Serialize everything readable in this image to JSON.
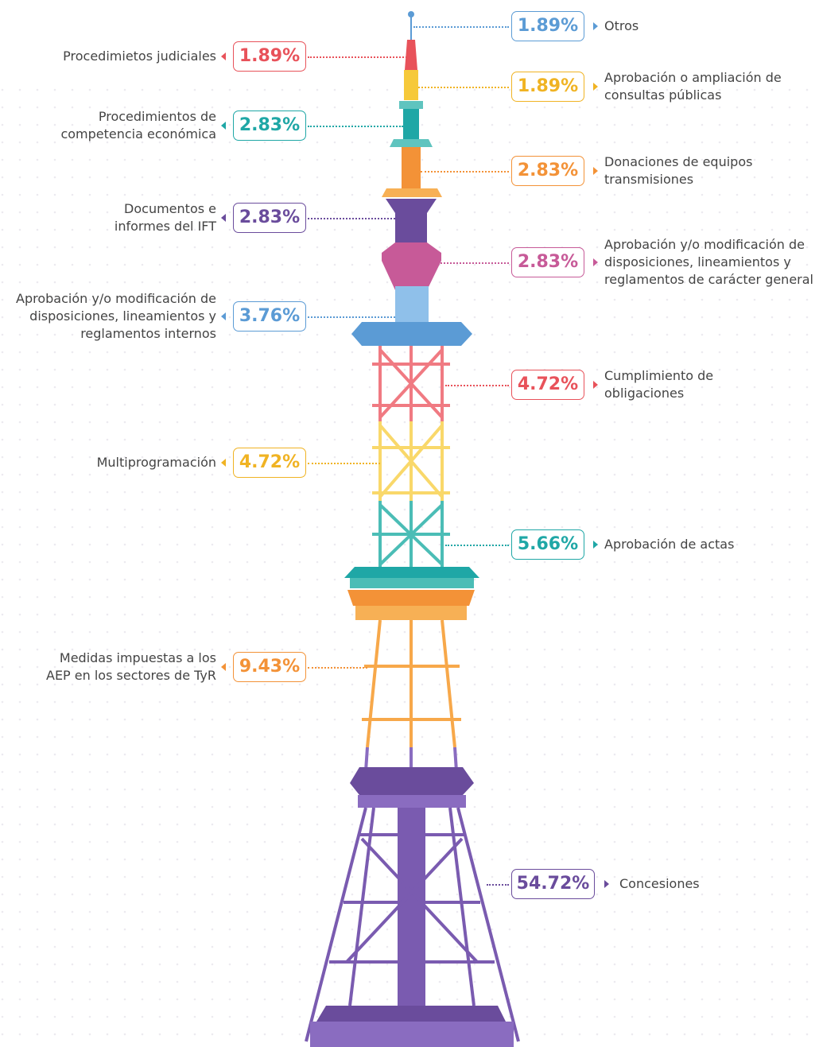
{
  "left_items": [
    {
      "label": "Procedimietos judiciales",
      "value": "1.89%",
      "color": "#e8525a"
    },
    {
      "label": "Procedimientos de competencia económica",
      "value": "2.83%",
      "color": "#1fa7a6"
    },
    {
      "label": "Documentos e informes del IFT",
      "value": "2.83%",
      "color": "#6a4c9c"
    },
    {
      "label": "Aprobación y/o modificación de disposiciones, lineamientos y reglamentos internos",
      "value": "3.76%",
      "color": "#5b9bd5"
    },
    {
      "label": "Multiprogramación",
      "value": "4.72%",
      "color": "#f0b323"
    },
    {
      "label": "Medidas impuestas a los AEP en los sectores de TyR",
      "value": "9.43%",
      "color": "#f39237"
    }
  ],
  "right_items": [
    {
      "label": "Otros",
      "value": "1.89%",
      "color": "#5b9bd5"
    },
    {
      "label": "Aprobación o ampliación de consultas públicas",
      "value": "1.89%",
      "color": "#f0b323"
    },
    {
      "label": "Donaciones de equipos transmisiones",
      "value": "2.83%",
      "color": "#f39237"
    },
    {
      "label": "Aprobación y/o modificación de disposiciones, lineamientos y reglamentos de carácter general",
      "value": "2.83%",
      "color": "#c75a98"
    },
    {
      "label": "Cumplimiento de obligaciones",
      "value": "4.72%",
      "color": "#e8525a"
    },
    {
      "label": "Aprobación de actas",
      "value": "5.66%",
      "color": "#1fa7a6"
    },
    {
      "label": "Concesiones",
      "value": "54.72%",
      "color": "#6a4c9c"
    }
  ]
}
